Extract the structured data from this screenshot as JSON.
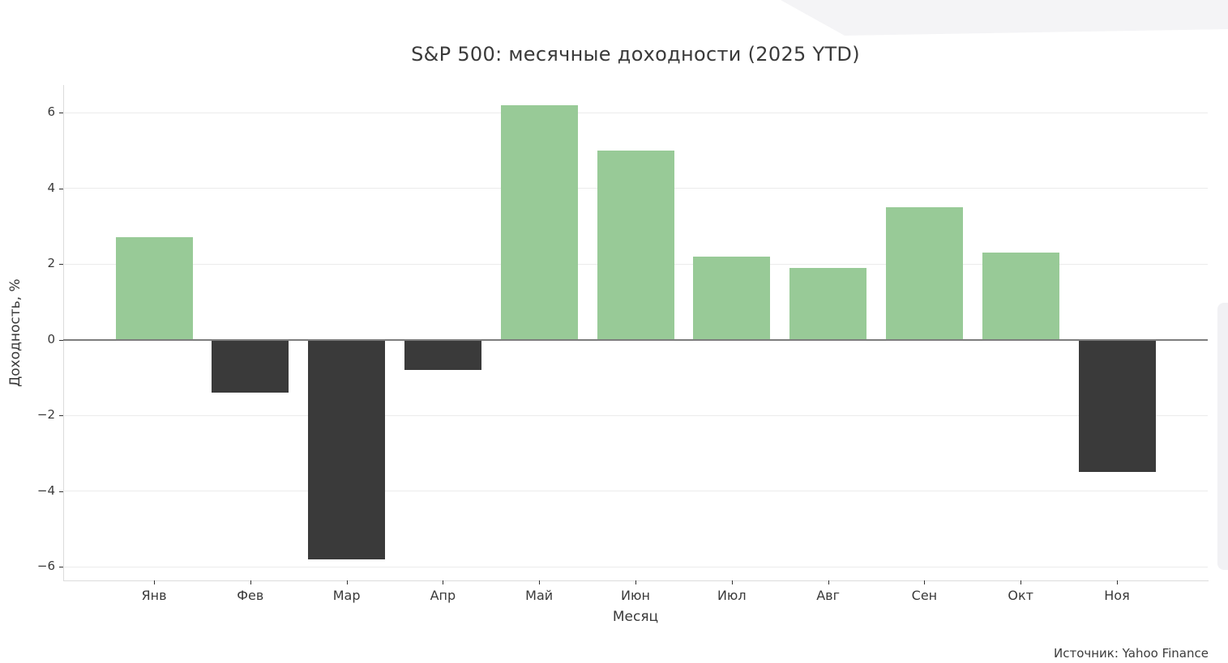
{
  "page": {
    "background": "#ffffff",
    "corner_wedge_color": "#f4f4f6",
    "scrollbar_color": "#f1f1f4"
  },
  "chart_data": {
    "type": "bar",
    "title": "S&P 500: месячные доходности (2025 YTD)",
    "xlabel": "Месяц",
    "ylabel": "Доходность, %",
    "categories": [
      "Янв",
      "Фев",
      "Мар",
      "Апр",
      "Май",
      "Июн",
      "Июл",
      "Авг",
      "Сен",
      "Окт",
      "Ноя"
    ],
    "values": [
      2.7,
      -1.4,
      -5.8,
      -0.8,
      6.2,
      5.0,
      2.2,
      1.9,
      3.5,
      2.3,
      -3.5
    ],
    "yticks": [
      6,
      4,
      2,
      0,
      -2,
      -4,
      -6
    ],
    "ylim": [
      -6.36,
      6.73
    ],
    "grid": true,
    "legend": "none",
    "positive_color": "#98ca97",
    "negative_color": "#3a3a3a",
    "zero_line_color": "#7d7d7d",
    "grid_color": "#ebebeb",
    "axis_spine_color": "#dcdcdc"
  },
  "footer": {
    "source": "Источник: Yahoo Finance"
  }
}
